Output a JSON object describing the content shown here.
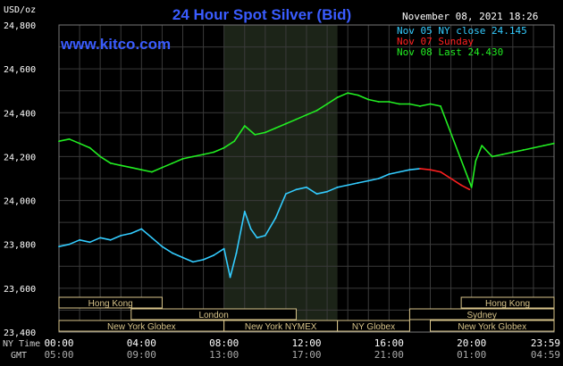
{
  "chart_data": {
    "type": "line",
    "title": "24 Hour Spot Silver (Bid)",
    "watermark": "www.kitco.com",
    "timestamp": "November 08, 2021 18:26",
    "ylabel": "USD/oz",
    "ylim": [
      23.4,
      24.8
    ],
    "yticks": [
      "24,800",
      "24,600",
      "24,400",
      "24,200",
      "24,000",
      "23,800",
      "23,600",
      "23,400"
    ],
    "xticks_ny": [
      "00:00",
      "04:00",
      "08:00",
      "12:00",
      "16:00",
      "20:00",
      "23:59"
    ],
    "xticks_gmt": [
      "05:00",
      "09:00",
      "13:00",
      "17:00",
      "21:00",
      "01:00",
      "04:59"
    ],
    "row_label_ny": "NY Time",
    "row_label_gmt": "GMT",
    "grid": true,
    "legend": [
      {
        "label": "Nov 05 NY close 24.145",
        "color": "#33ccff"
      },
      {
        "label": "Nov 07 Sunday",
        "color": "#ff2020"
      },
      {
        "label": "Nov 08 Last 24.430",
        "color": "#22ee22"
      }
    ],
    "highlight_hours": [
      8.0,
      13.5
    ],
    "sessions": [
      {
        "name": "Hong Kong",
        "start_h": -0.5,
        "end_h": 5.0
      },
      {
        "name": "London",
        "start_h": 3.5,
        "end_h": 11.5
      },
      {
        "name": "New York Globex",
        "start_h": -0.5,
        "end_h": 8.0
      },
      {
        "name": "New York NYMEX",
        "start_h": 8.0,
        "end_h": 13.5
      },
      {
        "name": "NY Globex",
        "start_h": 13.5,
        "end_h": 17.0
      },
      {
        "name": "Hong Kong",
        "start_h": 19.5,
        "end_h": 24.2
      },
      {
        "name": "Sydney",
        "start_h": 17.0,
        "end_h": 24.2
      },
      {
        "name": "New York Globex",
        "start_h": 18.0,
        "end_h": 24.2
      }
    ],
    "series": [
      {
        "name": "Nov 05",
        "color": "#33ccff",
        "x": [
          0,
          0.5,
          1,
          1.5,
          2,
          2.5,
          3,
          3.5,
          4,
          4.5,
          5,
          5.5,
          6,
          6.5,
          7,
          7.5,
          8,
          8.3,
          8.6,
          9,
          9.3,
          9.6,
          10,
          10.5,
          11,
          11.5,
          12,
          12.5,
          13,
          13.5,
          14,
          14.5,
          15,
          15.5,
          16,
          16.5,
          17,
          17.5
        ],
        "y": [
          23.79,
          23.8,
          23.82,
          23.81,
          23.83,
          23.82,
          23.84,
          23.85,
          23.87,
          23.83,
          23.79,
          23.76,
          23.74,
          23.72,
          23.73,
          23.75,
          23.78,
          23.65,
          23.76,
          23.95,
          23.87,
          23.83,
          23.84,
          23.92,
          24.03,
          24.05,
          24.06,
          24.03,
          24.04,
          24.06,
          24.07,
          24.08,
          24.09,
          24.1,
          24.12,
          24.13,
          24.14,
          24.145
        ]
      },
      {
        "name": "Nov 07",
        "color": "#ff2020",
        "x": [
          17.5,
          18,
          18.5,
          19,
          19.5,
          19.9
        ],
        "y": [
          24.145,
          24.14,
          24.13,
          24.1,
          24.07,
          24.05
        ]
      },
      {
        "name": "Nov 08",
        "color": "#22ee22",
        "x": [
          0,
          0.5,
          1,
          1.5,
          2,
          2.5,
          3,
          3.5,
          4,
          4.5,
          5,
          5.5,
          6,
          6.5,
          7,
          7.5,
          8,
          8.5,
          9,
          9.5,
          10,
          10.5,
          11,
          11.5,
          12,
          12.5,
          13,
          13.5,
          14,
          14.5,
          15,
          15.5,
          16,
          16.5,
          17,
          17.5,
          18,
          18.5,
          20,
          20.2,
          20.5,
          20.8,
          21,
          21.5,
          22,
          22.5,
          23,
          23.5,
          23.99
        ],
        "y": [
          24.27,
          24.28,
          24.26,
          24.24,
          24.2,
          24.17,
          24.16,
          24.15,
          24.14,
          24.13,
          24.15,
          24.17,
          24.19,
          24.2,
          24.21,
          24.22,
          24.24,
          24.27,
          24.34,
          24.3,
          24.31,
          24.33,
          24.35,
          24.37,
          24.39,
          24.41,
          24.44,
          24.47,
          24.49,
          24.48,
          24.46,
          24.45,
          24.45,
          24.44,
          24.44,
          24.43,
          24.44,
          24.43,
          24.06,
          24.18,
          24.25,
          24.22,
          24.2,
          24.21,
          24.22,
          24.23,
          24.24,
          24.25,
          24.26
        ]
      }
    ]
  }
}
